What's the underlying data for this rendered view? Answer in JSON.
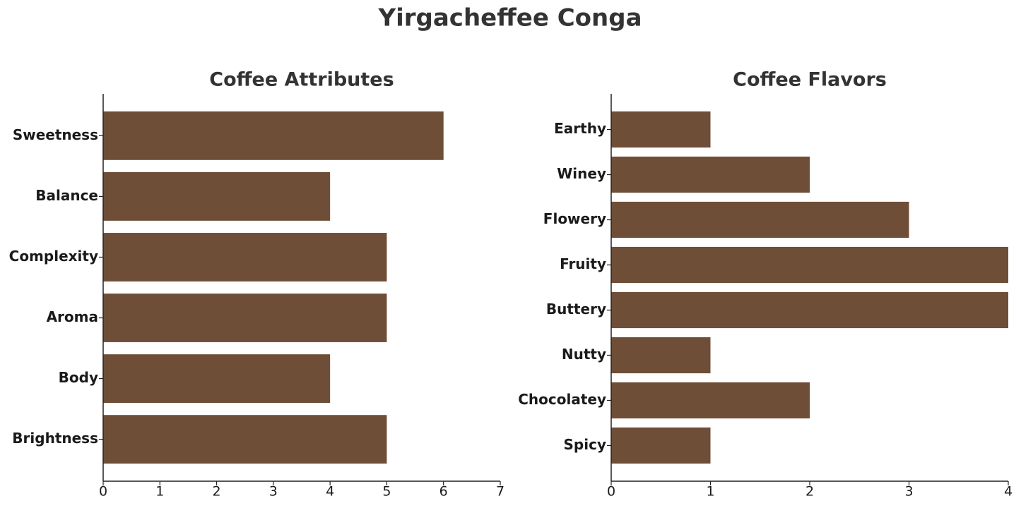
{
  "title": "Yirgacheffee Conga",
  "chart_data": [
    {
      "type": "barh",
      "title": "Coffee Attributes",
      "categories": [
        "Sweetness",
        "Balance",
        "Complexity",
        "Aroma",
        "Body",
        "Brightness"
      ],
      "values": [
        6,
        4,
        5,
        5,
        4,
        5
      ],
      "color": "#6f4e37",
      "xlim": [
        0,
        7
      ],
      "xticks": [
        0,
        1,
        2,
        3,
        4,
        5,
        6,
        7
      ]
    },
    {
      "type": "barh",
      "title": "Coffee Flavors",
      "categories": [
        "Earthy",
        "Winey",
        "Flowery",
        "Fruity",
        "Buttery",
        "Nutty",
        "Chocolatey",
        "Spicy"
      ],
      "values": [
        1,
        2,
        3,
        4,
        4,
        1,
        2,
        1
      ],
      "color": "#6f4e37",
      "xlim": [
        0,
        4
      ],
      "xticks": [
        0,
        1,
        2,
        3,
        4
      ]
    }
  ]
}
